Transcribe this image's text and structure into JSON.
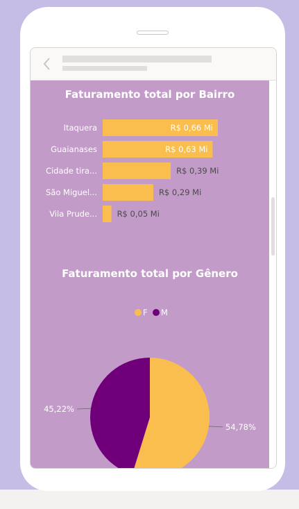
{
  "chart_data": [
    {
      "type": "bar",
      "orientation": "horizontal",
      "title": "Faturamento total por Bairro",
      "categories": [
        "Itaquera",
        "Guaianases",
        "Cidade tira...",
        "São Miguel...",
        "Vila Prude..."
      ],
      "values": [
        0.66,
        0.63,
        0.39,
        0.29,
        0.05
      ],
      "data_labels": [
        "R$ 0,66 Mi",
        "R$ 0,63 Mi",
        "R$ 0,39 Mi",
        "R$ 0,29 Mi",
        "R$ 0,05 Mi"
      ],
      "xlabel": "",
      "ylabel": "",
      "xlim": [
        0,
        0.66
      ],
      "grid": false,
      "colors": {
        "bar": "#f9be4e"
      }
    },
    {
      "type": "pie",
      "title": "Faturamento total por Gênero",
      "categories": [
        "F",
        "M"
      ],
      "values": [
        54.78,
        45.22
      ],
      "data_labels": [
        "54,78%",
        "45,22%"
      ],
      "legend_position": "top-center",
      "colors": {
        "F": "#f9be4e",
        "M": "#6f007a"
      }
    }
  ],
  "ui": {
    "background": "#c39bc9",
    "text_color": "#ffffff",
    "value_label_color": "#4a4a4a",
    "back_icon": "chevron-left-icon"
  }
}
